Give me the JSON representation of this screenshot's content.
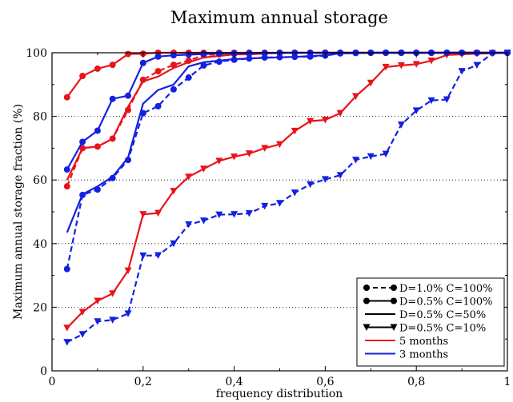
{
  "chart_data": {
    "type": "line",
    "title": "Maximum annual storage",
    "xlabel": "frequency distribution",
    "ylabel": "Maximum annual storage fraction (%)",
    "xlim": [
      0,
      1
    ],
    "ylim": [
      0,
      100
    ],
    "xticks": [
      "0",
      "0,2",
      "0,4",
      "0,6",
      "0,8",
      "1"
    ],
    "xtick_values": [
      0,
      0.2,
      0.4,
      0.6,
      0.8,
      1
    ],
    "yticks": [
      "0",
      "20",
      "40",
      "60",
      "80",
      "100"
    ],
    "ytick_values": [
      0,
      20,
      40,
      60,
      80,
      100
    ],
    "grid": "horizontal dotted",
    "legend_position": "bottom-right",
    "legend": [
      {
        "label": "D=1.0% C=100%",
        "style": "dashed",
        "marker": "circle",
        "color": "#000000"
      },
      {
        "label": "D=0.5% C=100%",
        "style": "solid",
        "marker": "circle",
        "color": "#000000"
      },
      {
        "label": "D=0.5% C=50%",
        "style": "solid",
        "marker": "none",
        "color": "#000000"
      },
      {
        "label": "D=0.5% C=10%",
        "style": "solid",
        "marker": "triangle-down",
        "color": "#000000"
      },
      {
        "label": "5 months",
        "style": "solid",
        "marker": "none",
        "color": "#e8141b"
      },
      {
        "label": "3 months",
        "style": "solid",
        "marker": "none",
        "color": "#1420e0"
      }
    ],
    "series": [
      {
        "id": "red-d05-c100",
        "color": "#e8141b",
        "dashed": false,
        "marker": "circle",
        "points": [
          [
            0.033,
            86
          ],
          [
            0.067,
            92.7
          ],
          [
            0.1,
            95
          ],
          [
            0.133,
            96.2
          ],
          [
            0.167,
            99.6
          ],
          [
            0.2,
            99.7
          ],
          [
            0.233,
            100
          ],
          [
            0.267,
            100
          ],
          [
            0.3,
            100
          ],
          [
            0.333,
            100
          ],
          [
            0.367,
            100
          ],
          [
            0.4,
            100
          ],
          [
            0.433,
            100
          ],
          [
            0.467,
            100
          ],
          [
            0.5,
            100
          ],
          [
            0.533,
            100
          ],
          [
            0.567,
            100
          ],
          [
            0.6,
            100
          ],
          [
            0.633,
            100
          ],
          [
            0.667,
            100
          ],
          [
            0.7,
            100
          ],
          [
            0.733,
            100
          ],
          [
            0.767,
            100
          ],
          [
            0.8,
            100
          ],
          [
            0.833,
            100
          ],
          [
            0.867,
            100
          ],
          [
            0.9,
            100
          ],
          [
            0.933,
            100
          ],
          [
            0.967,
            100
          ],
          [
            1.0,
            100
          ]
        ]
      },
      {
        "id": "red-d05-c50",
        "color": "#e8141b",
        "dashed": false,
        "marker": "none",
        "points": [
          [
            0.033,
            60
          ],
          [
            0.067,
            70
          ],
          [
            0.1,
            70.5
          ],
          [
            0.133,
            73
          ],
          [
            0.167,
            83
          ],
          [
            0.2,
            91
          ],
          [
            0.233,
            92.5
          ],
          [
            0.267,
            95.2
          ],
          [
            0.3,
            97
          ],
          [
            0.333,
            98.5
          ],
          [
            0.367,
            99
          ],
          [
            0.4,
            99.5
          ],
          [
            0.433,
            99.5
          ],
          [
            0.5,
            100
          ],
          [
            0.6,
            100
          ],
          [
            0.7,
            100
          ],
          [
            0.8,
            100
          ],
          [
            0.9,
            100
          ],
          [
            1.0,
            100
          ]
        ]
      },
      {
        "id": "red-d10-c100",
        "color": "#e8141b",
        "dashed": true,
        "marker": "circle",
        "points": [
          [
            0.033,
            58
          ],
          [
            0.067,
            70
          ],
          [
            0.1,
            70.5
          ],
          [
            0.133,
            73
          ],
          [
            0.167,
            82
          ],
          [
            0.2,
            91.5
          ],
          [
            0.233,
            94.2
          ],
          [
            0.267,
            96.2
          ],
          [
            0.3,
            97.5
          ],
          [
            0.333,
            99.3
          ],
          [
            0.367,
            99.5
          ],
          [
            0.4,
            99.6
          ],
          [
            0.433,
            99.7
          ],
          [
            0.467,
            99.8
          ],
          [
            0.5,
            99.9
          ],
          [
            0.533,
            100
          ],
          [
            0.567,
            100
          ],
          [
            0.6,
            100
          ],
          [
            0.633,
            100
          ],
          [
            0.667,
            100
          ],
          [
            0.7,
            100
          ],
          [
            0.733,
            100
          ],
          [
            0.767,
            100
          ],
          [
            0.8,
            100
          ],
          [
            0.833,
            100
          ],
          [
            0.867,
            100
          ],
          [
            0.9,
            100
          ],
          [
            0.933,
            100
          ],
          [
            0.967,
            100
          ],
          [
            1.0,
            100
          ]
        ]
      },
      {
        "id": "red-d05-c10",
        "color": "#e8141b",
        "dashed": false,
        "marker": "triangle-down",
        "points": [
          [
            0.033,
            13.5
          ],
          [
            0.067,
            18.5
          ],
          [
            0.1,
            22
          ],
          [
            0.133,
            24.3
          ],
          [
            0.167,
            31.5
          ],
          [
            0.2,
            49.2
          ],
          [
            0.233,
            49.6
          ],
          [
            0.267,
            56.5
          ],
          [
            0.3,
            61
          ],
          [
            0.333,
            63.5
          ],
          [
            0.367,
            66
          ],
          [
            0.4,
            67.3
          ],
          [
            0.433,
            68.3
          ],
          [
            0.467,
            70
          ],
          [
            0.5,
            71.2
          ],
          [
            0.533,
            75.4
          ],
          [
            0.567,
            78.5
          ],
          [
            0.6,
            78.9
          ],
          [
            0.633,
            81
          ],
          [
            0.667,
            86.3
          ],
          [
            0.7,
            90.5
          ],
          [
            0.733,
            95.5
          ],
          [
            0.767,
            96
          ],
          [
            0.8,
            96.4
          ],
          [
            0.833,
            97.5
          ],
          [
            0.867,
            99.3
          ],
          [
            0.9,
            99.5
          ],
          [
            0.933,
            99.7
          ],
          [
            0.967,
            99.8
          ],
          [
            1.0,
            100
          ]
        ]
      },
      {
        "id": "blue-d05-c100",
        "color": "#1420e0",
        "dashed": false,
        "marker": "circle",
        "points": [
          [
            0.033,
            63.3
          ],
          [
            0.067,
            72
          ],
          [
            0.1,
            75.5
          ],
          [
            0.133,
            85.5
          ],
          [
            0.167,
            86.5
          ],
          [
            0.2,
            96.8
          ],
          [
            0.233,
            98.8
          ],
          [
            0.267,
            99.2
          ],
          [
            0.3,
            99.4
          ],
          [
            0.333,
            99.6
          ],
          [
            0.367,
            99.8
          ],
          [
            0.4,
            99.8
          ],
          [
            0.433,
            99.9
          ],
          [
            0.467,
            99.9
          ],
          [
            0.5,
            100
          ],
          [
            0.533,
            100
          ],
          [
            0.567,
            100
          ],
          [
            0.6,
            100
          ],
          [
            0.633,
            100
          ],
          [
            0.667,
            100
          ],
          [
            0.7,
            100
          ],
          [
            0.733,
            100
          ],
          [
            0.767,
            100
          ],
          [
            0.8,
            100
          ],
          [
            0.833,
            100
          ],
          [
            0.867,
            100
          ],
          [
            0.9,
            100
          ],
          [
            0.933,
            100
          ],
          [
            0.967,
            100
          ],
          [
            1.0,
            100
          ]
        ]
      },
      {
        "id": "blue-d05-c50",
        "color": "#1420e0",
        "dashed": false,
        "marker": "none",
        "points": [
          [
            0.033,
            43.5
          ],
          [
            0.067,
            55.5
          ],
          [
            0.1,
            58
          ],
          [
            0.133,
            61
          ],
          [
            0.167,
            67
          ],
          [
            0.2,
            84
          ],
          [
            0.233,
            88.3
          ],
          [
            0.267,
            90
          ],
          [
            0.3,
            95.7
          ],
          [
            0.333,
            97
          ],
          [
            0.367,
            97.5
          ],
          [
            0.4,
            98
          ],
          [
            0.467,
            98.4
          ],
          [
            0.533,
            98.7
          ],
          [
            0.6,
            99.2
          ],
          [
            0.633,
            99.8
          ],
          [
            0.7,
            100
          ],
          [
            0.8,
            100
          ],
          [
            0.9,
            100
          ],
          [
            1.0,
            100
          ]
        ]
      },
      {
        "id": "blue-d10-c100",
        "color": "#1420e0",
        "dashed": true,
        "marker": "circle",
        "points": [
          [
            0.033,
            32
          ],
          [
            0.067,
            55.3
          ],
          [
            0.1,
            57
          ],
          [
            0.133,
            60.6
          ],
          [
            0.167,
            66.3
          ],
          [
            0.2,
            81
          ],
          [
            0.233,
            83.2
          ],
          [
            0.267,
            88.5
          ],
          [
            0.3,
            92.2
          ],
          [
            0.333,
            96
          ],
          [
            0.367,
            97.2
          ],
          [
            0.4,
            97.8
          ],
          [
            0.433,
            98.2
          ],
          [
            0.467,
            98.5
          ],
          [
            0.5,
            98.6
          ],
          [
            0.533,
            98.7
          ],
          [
            0.567,
            98.8
          ],
          [
            0.6,
            99.1
          ],
          [
            0.633,
            99.8
          ],
          [
            0.667,
            99.9
          ],
          [
            0.7,
            100
          ],
          [
            0.733,
            100
          ],
          [
            0.767,
            100
          ],
          [
            0.8,
            100
          ],
          [
            0.833,
            100
          ],
          [
            0.867,
            100
          ],
          [
            0.9,
            100
          ],
          [
            0.933,
            100
          ],
          [
            0.967,
            100
          ],
          [
            1.0,
            100
          ]
        ]
      },
      {
        "id": "blue-d05-c10",
        "color": "#1420e0",
        "dashed": true,
        "marker": "triangle-down",
        "points": [
          [
            0.033,
            9
          ],
          [
            0.067,
            11.5
          ],
          [
            0.1,
            15.5
          ],
          [
            0.133,
            16
          ],
          [
            0.167,
            18
          ],
          [
            0.2,
            36.2
          ],
          [
            0.233,
            36.3
          ],
          [
            0.267,
            40
          ],
          [
            0.3,
            46
          ],
          [
            0.333,
            47.2
          ],
          [
            0.367,
            49.1
          ],
          [
            0.4,
            49.2
          ],
          [
            0.433,
            49.5
          ],
          [
            0.467,
            51.8
          ],
          [
            0.5,
            52.7
          ],
          [
            0.533,
            56
          ],
          [
            0.567,
            58.6
          ],
          [
            0.6,
            60.2
          ],
          [
            0.633,
            61.5
          ],
          [
            0.667,
            66.3
          ],
          [
            0.7,
            67.4
          ],
          [
            0.733,
            68.2
          ],
          [
            0.767,
            77.4
          ],
          [
            0.8,
            81.8
          ],
          [
            0.833,
            85
          ],
          [
            0.867,
            85.3
          ],
          [
            0.9,
            94.2
          ],
          [
            0.933,
            96.1
          ],
          [
            0.967,
            99.8
          ],
          [
            1.0,
            100
          ]
        ]
      }
    ]
  }
}
